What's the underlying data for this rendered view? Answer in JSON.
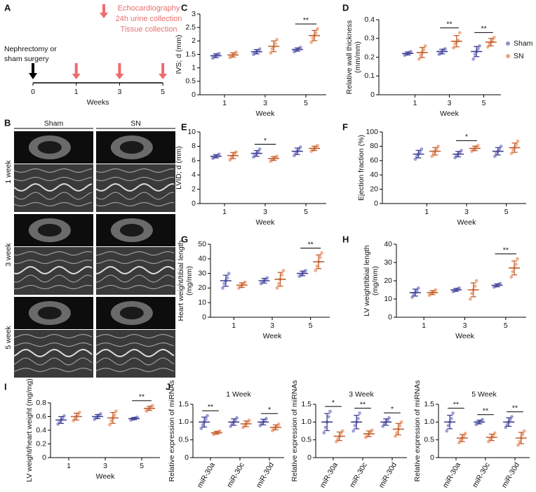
{
  "groups": [
    {
      "name": "Sham",
      "color": "#8d8fd0",
      "bar_color": "#3f3f94"
    },
    {
      "name": "SN",
      "color": "#f0a27a",
      "bar_color": "#c0602f"
    }
  ],
  "panel_a": {
    "panel": "A",
    "legend": [
      "Echocardiography",
      "24h urine collection",
      "Tissue collection"
    ],
    "start": [
      "Nephrectomy or",
      "sham surgery"
    ],
    "ticks": [
      "0",
      "1",
      "3",
      "5"
    ],
    "xlabel": "Weeks"
  },
  "panel_b": {
    "panel": "B",
    "columns": [
      "Sham",
      "SN"
    ],
    "rows": [
      "1 week",
      "3 week",
      "5 week"
    ]
  },
  "chart_data": [
    {
      "type": "dotplot",
      "panel": "C",
      "ylabel": [
        "IVS; d (mm)"
      ],
      "xlabel": "Week",
      "categories": [
        "1",
        "3",
        "5"
      ],
      "ylim": [
        0,
        3
      ],
      "yticks": [
        0,
        0.5,
        1,
        1.5,
        2,
        2.5,
        3
      ],
      "series": [
        {
          "mean": [
            1.45,
            1.6,
            1.68
          ],
          "sd": [
            0.07,
            0.08,
            0.06
          ],
          "points": [
            [
              1.36,
              1.42,
              1.46,
              1.5,
              1.53
            ],
            [
              1.5,
              1.56,
              1.6,
              1.64,
              1.7
            ],
            [
              1.6,
              1.64,
              1.68,
              1.72,
              1.76
            ]
          ]
        },
        {
          "mean": [
            1.48,
            1.8,
            2.2
          ],
          "sd": [
            0.08,
            0.2,
            0.19
          ],
          "points": [
            [
              1.38,
              1.44,
              1.48,
              1.52,
              1.58
            ],
            [
              1.55,
              1.7,
              1.78,
              1.9,
              2.05
            ],
            [
              1.95,
              2.1,
              2.2,
              2.3,
              2.45
            ]
          ]
        }
      ],
      "significance": [
        {
          "label": "**",
          "category": "5"
        }
      ]
    },
    {
      "type": "dotplot",
      "panel": "D",
      "ylabel": [
        "Relative wall thickness",
        "(mm/mm)"
      ],
      "xlabel": "Week",
      "categories": [
        "1",
        "3",
        "5"
      ],
      "ylim": [
        0,
        0.4
      ],
      "yticks": [
        0,
        0.1,
        0.2,
        0.3,
        0.4
      ],
      "legend": true,
      "series": [
        {
          "mean": [
            0.22,
            0.23,
            0.23
          ],
          "sd": [
            0.008,
            0.012,
            0.027
          ],
          "points": [
            [
              0.21,
              0.215,
              0.22,
              0.225,
              0.23
            ],
            [
              0.215,
              0.22,
              0.23,
              0.24,
              0.245
            ],
            [
              0.19,
              0.215,
              0.23,
              0.245,
              0.26
            ]
          ]
        },
        {
          "mean": [
            0.225,
            0.285,
            0.28
          ],
          "sd": [
            0.027,
            0.03,
            0.02
          ],
          "points": [
            [
              0.19,
              0.21,
              0.225,
              0.24,
              0.26
            ],
            [
              0.25,
              0.27,
              0.28,
              0.29,
              0.33
            ],
            [
              0.255,
              0.27,
              0.28,
              0.29,
              0.305
            ]
          ]
        }
      ],
      "significance": [
        {
          "label": "**",
          "category": "3"
        },
        {
          "label": "**",
          "category": "5"
        }
      ]
    },
    {
      "type": "dotplot",
      "panel": "E",
      "ylabel": [
        "LVID; d (mm)"
      ],
      "xlabel": "Week",
      "categories": [
        "1",
        "3",
        "5"
      ],
      "ylim": [
        0,
        10
      ],
      "yticks": [
        0,
        2,
        4,
        6,
        8,
        10
      ],
      "series": [
        {
          "mean": [
            6.6,
            7.0,
            7.3
          ],
          "sd": [
            0.23,
            0.4,
            0.45
          ],
          "points": [
            [
              6.3,
              6.5,
              6.6,
              6.7,
              6.9
            ],
            [
              6.5,
              6.8,
              7.0,
              7.2,
              7.6
            ],
            [
              6.7,
              7.0,
              7.3,
              7.6,
              7.9
            ]
          ]
        },
        {
          "mean": [
            6.7,
            6.3,
            7.7
          ],
          "sd": [
            0.43,
            0.27,
            0.3
          ],
          "points": [
            [
              6.1,
              6.4,
              6.7,
              7.0,
              7.2
            ],
            [
              5.9,
              6.1,
              6.3,
              6.4,
              6.6
            ],
            [
              7.3,
              7.5,
              7.7,
              7.9,
              8.1
            ]
          ]
        }
      ],
      "significance": [
        {
          "label": "*",
          "category": "3"
        }
      ]
    },
    {
      "type": "dotplot",
      "panel": "F",
      "ylabel": [
        "Ejection fraction (%)"
      ],
      "xlabel": "Week",
      "categories": [
        "1",
        "3",
        "5"
      ],
      "ylim": [
        0,
        100
      ],
      "yticks": [
        0,
        20,
        40,
        60,
        80,
        100
      ],
      "series": [
        {
          "mean": [
            69,
            69,
            73
          ],
          "sd": [
            5.2,
            3.8,
            5.2
          ],
          "points": [
            [
              62,
              66,
              69,
              72,
              76
            ],
            [
              64,
              67,
              69,
              71,
              74
            ],
            [
              66,
              70,
              73,
              76,
              80
            ]
          ]
        },
        {
          "mean": [
            73,
            77,
            78
          ],
          "sd": [
            5.2,
            3.1,
            6.5
          ],
          "points": [
            [
              66,
              70,
              73,
              76,
              80
            ],
            [
              73,
              75,
              77,
              79,
              81
            ],
            [
              70,
              75,
              78,
              82,
              87
            ]
          ]
        }
      ],
      "significance": [
        {
          "label": "*",
          "category": "3"
        }
      ]
    },
    {
      "type": "dotplot",
      "panel": "G",
      "ylabel": [
        "Heart weight/tibial length",
        "(mg/mm)"
      ],
      "xlabel": "Week",
      "categories": [
        "1",
        "3",
        "5"
      ],
      "ylim": [
        0,
        50
      ],
      "yticks": [
        0,
        10,
        20,
        30,
        40,
        50
      ],
      "series": [
        {
          "mean": [
            25,
            25,
            30
          ],
          "sd": [
            3.8,
            1.6,
            1.6
          ],
          "points": [
            [
              20,
              23,
              25,
              27,
              30
            ],
            [
              23,
              24,
              25,
              26,
              27
            ],
            [
              28,
              29,
              30,
              31,
              32
            ]
          ]
        },
        {
          "mean": [
            22,
            26,
            38
          ],
          "sd": [
            1.6,
            4.7,
            4.7
          ],
          "points": [
            [
              20,
              21,
              22,
              23,
              24
            ],
            [
              20,
              23,
              26,
              29,
              32
            ],
            [
              32,
              35,
              38,
              41,
              44
            ]
          ]
        }
      ],
      "significance": [
        {
          "label": "**",
          "category": "5"
        }
      ]
    },
    {
      "type": "dotplot",
      "panel": "H",
      "ylabel": [
        "LV weight/tibial length",
        "(mg/mm)"
      ],
      "xlabel": "Week",
      "categories": [
        "1",
        "3",
        "5"
      ],
      "ylim": [
        0,
        40
      ],
      "yticks": [
        0,
        10,
        20,
        30,
        40
      ],
      "series": [
        {
          "mean": [
            13.5,
            15,
            17.5
          ],
          "sd": [
            1.9,
            0.8,
            0.8
          ],
          "points": [
            [
              11,
              12.5,
              13.5,
              14.5,
              16
            ],
            [
              14,
              14.5,
              15,
              15.5,
              16
            ],
            [
              16.5,
              17,
              17.5,
              18,
              18.5
            ]
          ]
        },
        {
          "mean": [
            13.5,
            15,
            27
          ],
          "sd": [
            1.1,
            3.8,
            3.8
          ],
          "points": [
            [
              12,
              13,
              13.5,
              14,
              15
            ],
            [
              10,
              13,
              15,
              17,
              20
            ],
            [
              22,
              25,
              27,
              29,
              32
            ]
          ]
        }
      ],
      "significance": [
        {
          "label": "**",
          "category": "5"
        }
      ]
    },
    {
      "type": "dotplot",
      "panel": "I",
      "ylabel": [
        "LV weight/heart weight (mg/mg)"
      ],
      "xlabel": "Week",
      "categories": [
        "1",
        "3",
        "5"
      ],
      "ylim": [
        0,
        0.8
      ],
      "yticks": [
        0,
        0.2,
        0.4,
        0.6,
        0.8
      ],
      "series": [
        {
          "mean": [
            0.55,
            0.6,
            0.57
          ],
          "sd": [
            0.05,
            0.03,
            0.016
          ],
          "points": [
            [
              0.49,
              0.52,
              0.55,
              0.58,
              0.61
            ],
            [
              0.56,
              0.58,
              0.6,
              0.62,
              0.64
            ],
            [
              0.55,
              0.56,
              0.57,
              0.58,
              0.59
            ]
          ]
        },
        {
          "mean": [
            0.6,
            0.58,
            0.72
          ],
          "sd": [
            0.05,
            0.08,
            0.03
          ],
          "points": [
            [
              0.54,
              0.57,
              0.6,
              0.63,
              0.66
            ],
            [
              0.48,
              0.54,
              0.58,
              0.62,
              0.68
            ],
            [
              0.68,
              0.7,
              0.72,
              0.74,
              0.76
            ]
          ]
        }
      ],
      "significance": [
        {
          "label": "**",
          "category": "5"
        }
      ]
    },
    {
      "type": "dotplot",
      "panel": "J",
      "title": "1 Week",
      "ylabel": [
        "Relative expression of miRNAs"
      ],
      "categories": [
        "miR-30a",
        "miR-30c",
        "miR-30d"
      ],
      "ylim": [
        0,
        1.5
      ],
      "yticks": [
        0,
        0.5,
        {
          "value": 1,
          "label": "1.0"
        },
        1.5
      ],
      "series": [
        {
          "mean": [
            1.0,
            1.0,
            1.0
          ],
          "sd": [
            0.14,
            0.09,
            0.08
          ],
          "points": [
            [
              0.82,
              0.92,
              1.0,
              1.08,
              1.18
            ],
            [
              0.88,
              0.95,
              1.0,
              1.05,
              1.12
            ],
            [
              0.9,
              0.96,
              1.0,
              1.04,
              1.1
            ]
          ]
        },
        {
          "mean": [
            0.7,
            0.95,
            0.85
          ],
          "sd": [
            0.04,
            0.08,
            0.07
          ],
          "points": [
            [
              0.65,
              0.68,
              0.7,
              0.72,
              0.75
            ],
            [
              0.85,
              0.9,
              0.95,
              1.0,
              1.05
            ],
            [
              0.76,
              0.81,
              0.85,
              0.89,
              0.94
            ]
          ]
        }
      ],
      "significance": [
        {
          "label": "**",
          "category": "miR-30a"
        },
        {
          "label": "*",
          "category": "miR-30d"
        }
      ]
    },
    {
      "type": "dotplot",
      "title": "3 Week",
      "ylabel": [
        "Relative expression of miRNAs"
      ],
      "categories": [
        "miR-30a",
        "miR-30c",
        "miR-30d"
      ],
      "ylim": [
        0,
        1.5
      ],
      "yticks": [
        0,
        0.5,
        {
          "value": 1,
          "label": "1.0"
        },
        1.5
      ],
      "series": [
        {
          "mean": [
            1.0,
            1.0,
            1.0
          ],
          "sd": [
            0.24,
            0.19,
            0.09
          ],
          "points": [
            [
              0.7,
              0.85,
              1.0,
              1.15,
              1.3
            ],
            [
              0.75,
              0.9,
              1.0,
              1.1,
              1.25
            ],
            [
              0.88,
              0.95,
              1.0,
              1.05,
              1.12
            ]
          ]
        },
        {
          "mean": [
            0.6,
            0.67,
            0.8
          ],
          "sd": [
            0.12,
            0.08,
            0.16
          ],
          "points": [
            [
              0.45,
              0.52,
              0.6,
              0.68,
              0.75
            ],
            [
              0.57,
              0.62,
              0.67,
              0.72,
              0.77
            ],
            [
              0.6,
              0.7,
              0.8,
              0.9,
              1.0
            ]
          ]
        }
      ],
      "significance": [
        {
          "label": "*",
          "category": "miR-30a"
        },
        {
          "label": "**",
          "category": "miR-30c"
        },
        {
          "label": "*",
          "category": "miR-30d"
        }
      ]
    },
    {
      "type": "dotplot",
      "title": "5 Week",
      "ylabel": [
        "Relative expression of miRNAs"
      ],
      "categories": [
        "miR-30a",
        "miR-30c",
        "miR-30d"
      ],
      "ylim": [
        0,
        1.5
      ],
      "yticks": [
        0,
        0.5,
        {
          "value": 1,
          "label": "1.0"
        },
        1.5
      ],
      "series": [
        {
          "mean": [
            1.0,
            1.0,
            1.0
          ],
          "sd": [
            0.19,
            0.05,
            0.12
          ],
          "points": [
            [
              0.75,
              0.9,
              1.0,
              1.1,
              1.25
            ],
            [
              0.93,
              0.97,
              1.0,
              1.03,
              1.07
            ],
            [
              0.85,
              0.93,
              1.0,
              1.07,
              1.15
            ]
          ]
        },
        {
          "mean": [
            0.55,
            0.57,
            0.55
          ],
          "sd": [
            0.1,
            0.09,
            0.16
          ],
          "points": [
            [
              0.42,
              0.5,
              0.55,
              0.6,
              0.68
            ],
            [
              0.45,
              0.52,
              0.57,
              0.62,
              0.69
            ],
            [
              0.35,
              0.45,
              0.55,
              0.65,
              0.75
            ]
          ]
        }
      ],
      "significance": [
        {
          "label": "**",
          "category": "miR-30a"
        },
        {
          "label": "**",
          "category": "miR-30c"
        },
        {
          "label": "**",
          "category": "miR-30d"
        }
      ]
    }
  ]
}
